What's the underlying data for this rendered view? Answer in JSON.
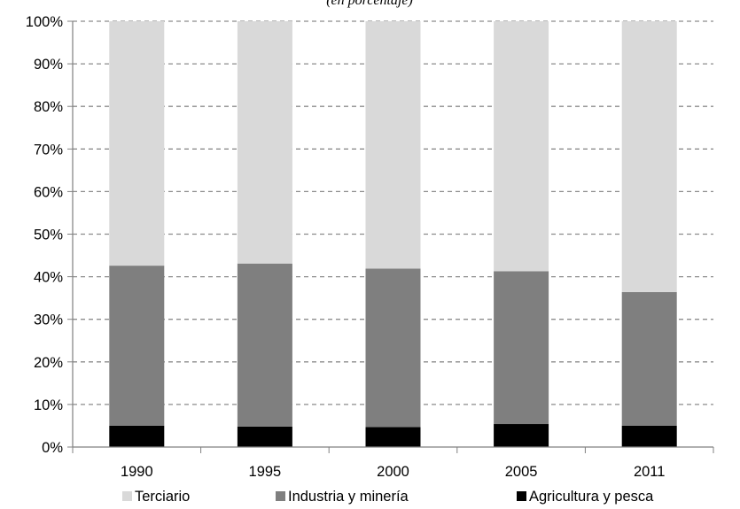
{
  "chart_data": {
    "type": "bar",
    "stacked": true,
    "subtitle": "(en porcentaje)",
    "categories": [
      "1990",
      "1995",
      "2000",
      "2005",
      "2011"
    ],
    "series": [
      {
        "name": "Agricultura y pesca",
        "values": [
          5.0,
          4.8,
          4.7,
          5.4,
          5.0
        ],
        "color": "#000000"
      },
      {
        "name": "Industria y minería",
        "values": [
          37.6,
          38.3,
          37.2,
          35.9,
          31.4
        ],
        "color": "#7f7f7f"
      },
      {
        "name": "Terciario",
        "values": [
          57.4,
          56.9,
          58.1,
          58.7,
          63.6
        ],
        "color": "#d9d9d9"
      }
    ],
    "legend_order": [
      "Terciario",
      "Industria y minería",
      "Agricultura y pesca"
    ],
    "ylim": [
      0,
      100
    ],
    "yticks": [
      "0%",
      "10%",
      "20%",
      "30%",
      "40%",
      "50%",
      "60%",
      "70%",
      "80%",
      "90%",
      "100%"
    ],
    "grid": true,
    "gridline_style": "dashed",
    "legend_position": "bottom"
  }
}
